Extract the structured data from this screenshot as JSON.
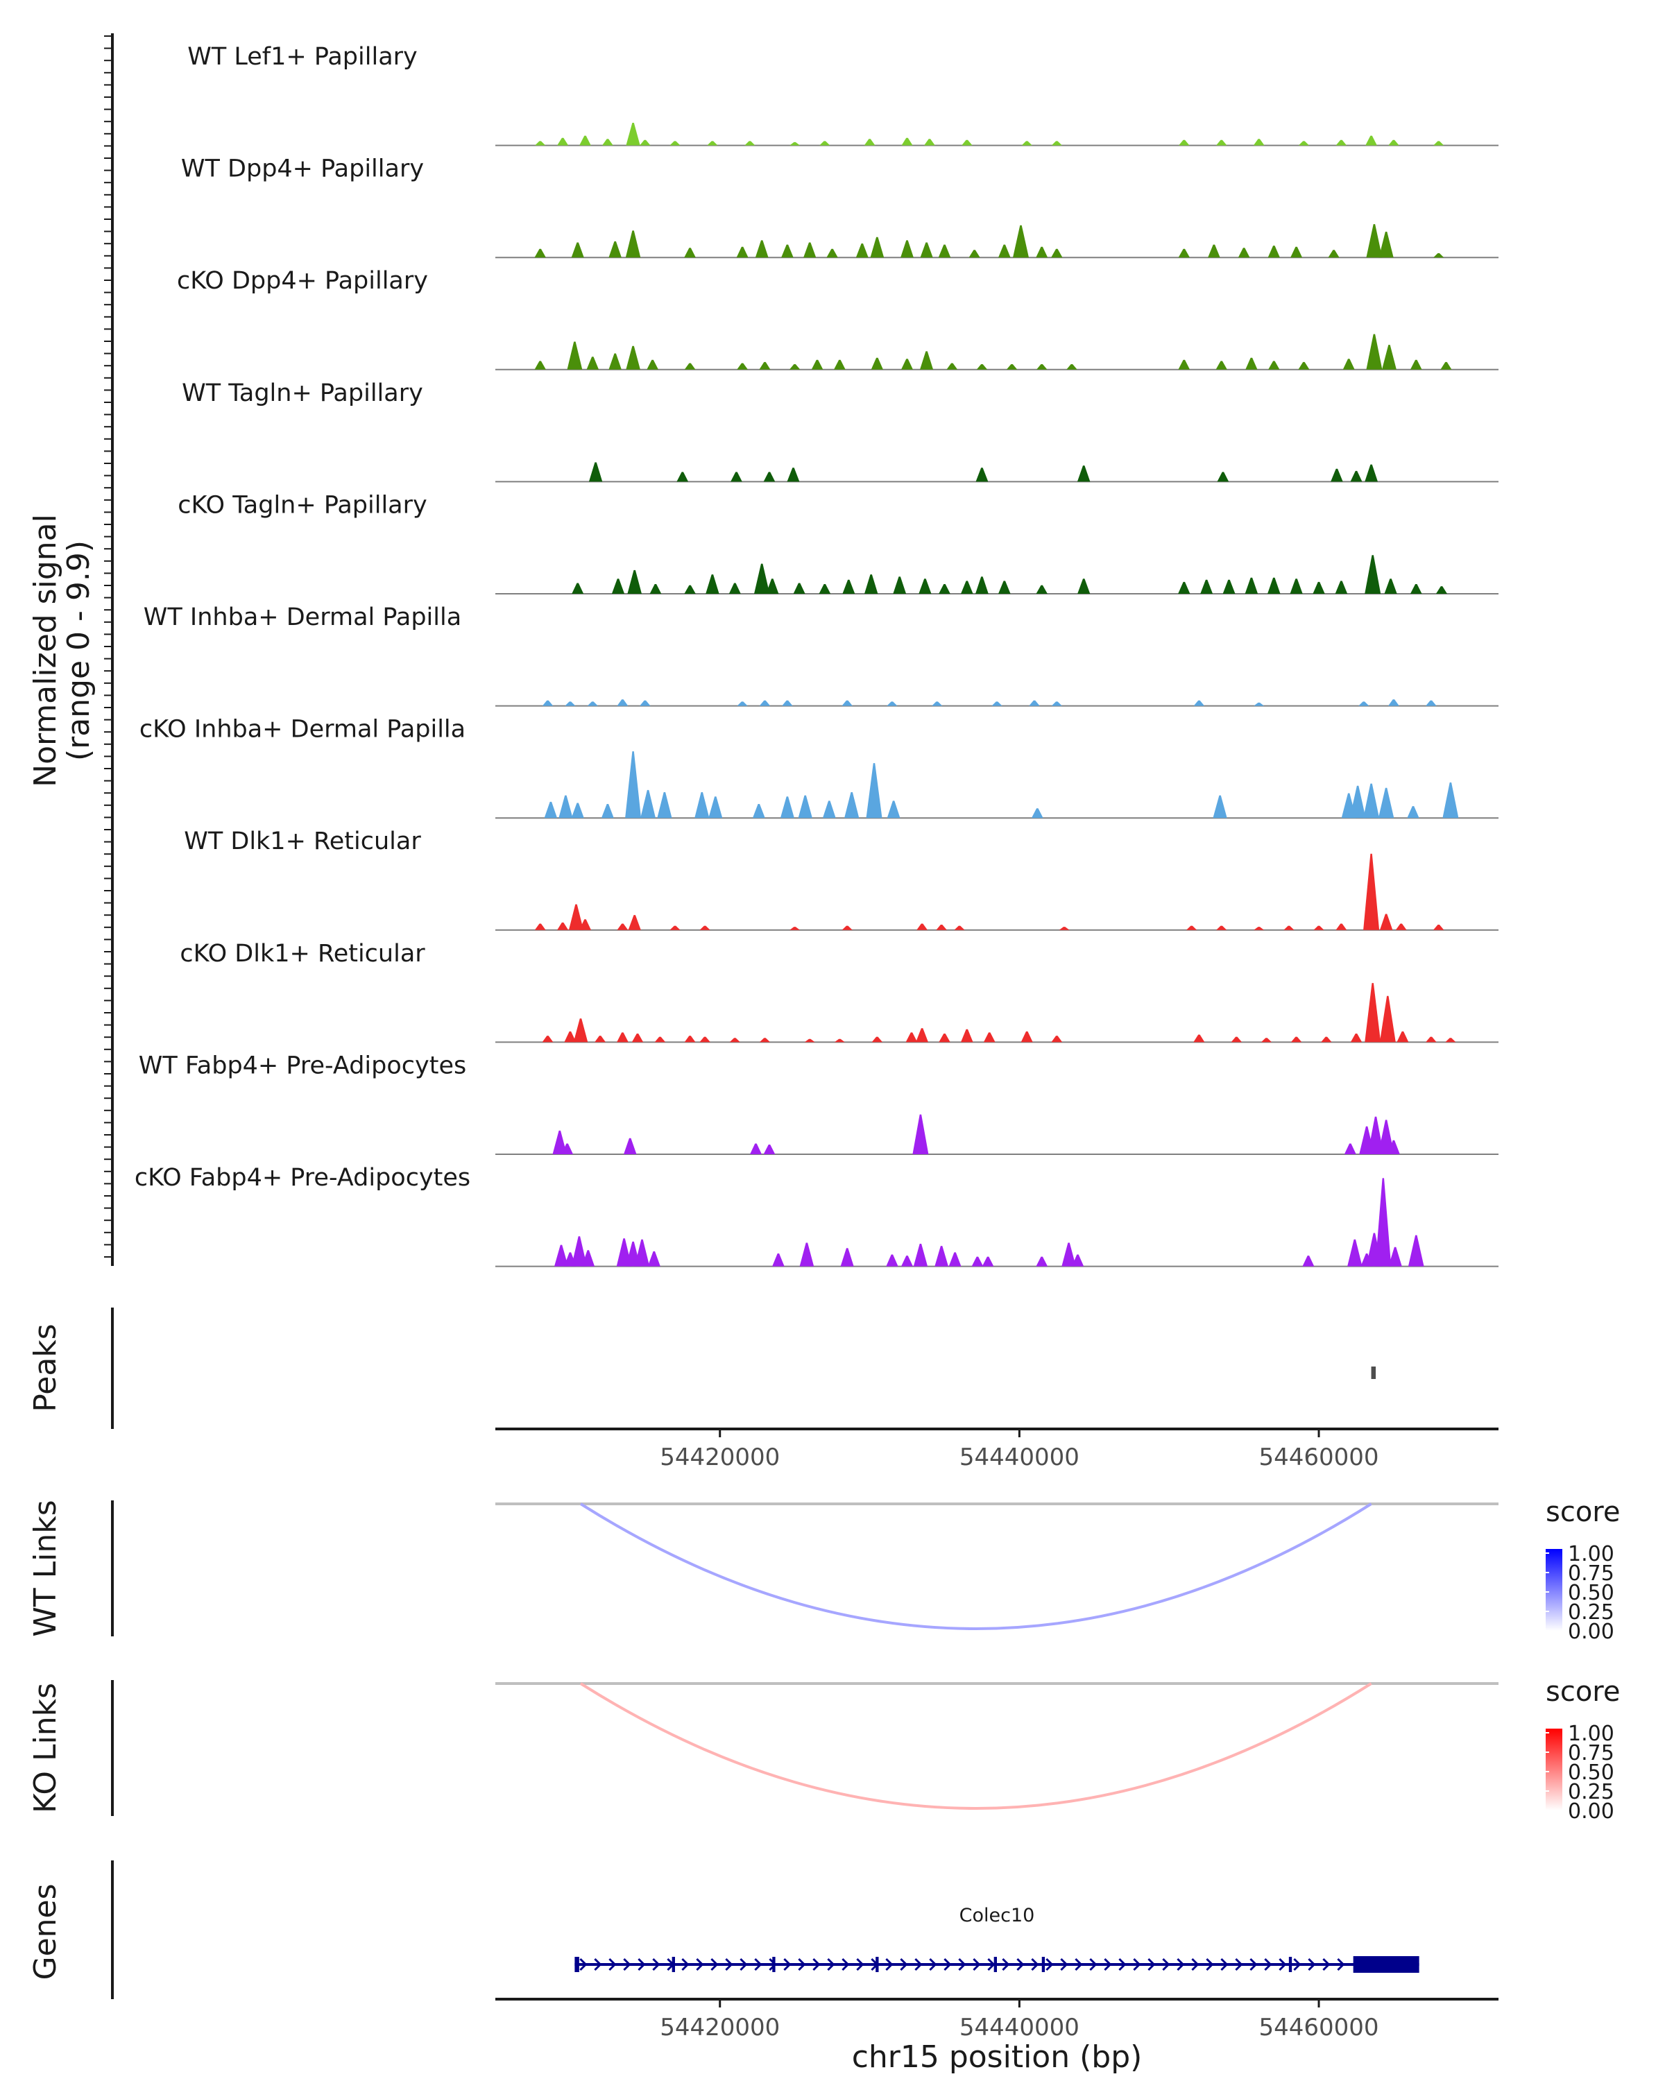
{
  "chart_data": {
    "type": "coverage",
    "region": {
      "start": 54405000,
      "end": 54472000
    },
    "xticks": [
      "54420000",
      "54440000",
      "54460000"
    ],
    "xtick_values": [
      54420000,
      54440000,
      54460000
    ],
    "xlabel": "chr15 position (bp)",
    "ylabel_line1": "Normalized signal",
    "ylabel_line2": "(range 0 - 9.9)",
    "signal_max": 9.9,
    "tracks": [
      {
        "name": "WT Lef1+ Papillary",
        "color": "#7CCD2E",
        "peaks": [
          [
            54408000,
            0.4
          ],
          [
            54409500,
            0.7
          ],
          [
            54411000,
            0.9
          ],
          [
            54412500,
            0.6
          ],
          [
            54414200,
            2.1
          ],
          [
            54415000,
            0.5
          ],
          [
            54417000,
            0.4
          ],
          [
            54419500,
            0.4
          ],
          [
            54422000,
            0.4
          ],
          [
            54425000,
            0.3
          ],
          [
            54427000,
            0.4
          ],
          [
            54430000,
            0.6
          ],
          [
            54432500,
            0.7
          ],
          [
            54434000,
            0.6
          ],
          [
            54436500,
            0.5
          ],
          [
            54440500,
            0.4
          ],
          [
            54442500,
            0.4
          ],
          [
            54451000,
            0.5
          ],
          [
            54453500,
            0.5
          ],
          [
            54456000,
            0.6
          ],
          [
            54459000,
            0.4
          ],
          [
            54461500,
            0.5
          ],
          [
            54463500,
            0.9
          ],
          [
            54465000,
            0.5
          ],
          [
            54468000,
            0.4
          ]
        ]
      },
      {
        "name": "WT Dpp4+ Papillary",
        "color": "#4A8F0A",
        "peaks": [
          [
            54408000,
            0.8
          ],
          [
            54410500,
            1.4
          ],
          [
            54413000,
            1.5
          ],
          [
            54414200,
            2.5
          ],
          [
            54418000,
            0.9
          ],
          [
            54421500,
            1.0
          ],
          [
            54422800,
            1.6
          ],
          [
            54424500,
            1.2
          ],
          [
            54426000,
            1.4
          ],
          [
            54427500,
            0.8
          ],
          [
            54429500,
            1.3
          ],
          [
            54430500,
            1.9
          ],
          [
            54432500,
            1.6
          ],
          [
            54433800,
            1.4
          ],
          [
            54435000,
            1.2
          ],
          [
            54437000,
            0.7
          ],
          [
            54439000,
            1.2
          ],
          [
            54440100,
            3.0
          ],
          [
            54441500,
            1.0
          ],
          [
            54442500,
            0.8
          ],
          [
            54451000,
            0.8
          ],
          [
            54453000,
            1.2
          ],
          [
            54455000,
            0.9
          ],
          [
            54457000,
            1.1
          ],
          [
            54458500,
            1.0
          ],
          [
            54461000,
            0.7
          ],
          [
            54463700,
            3.1
          ],
          [
            54464500,
            2.4
          ],
          [
            54468000,
            0.4
          ]
        ]
      },
      {
        "name": "cKO Dpp4+ Papillary",
        "color": "#4A8F0A",
        "peaks": [
          [
            54408000,
            0.8
          ],
          [
            54410300,
            2.6
          ],
          [
            54411500,
            1.2
          ],
          [
            54413000,
            1.5
          ],
          [
            54414200,
            2.2
          ],
          [
            54415500,
            0.9
          ],
          [
            54418000,
            0.6
          ],
          [
            54421500,
            0.6
          ],
          [
            54423000,
            0.7
          ],
          [
            54425000,
            0.5
          ],
          [
            54426500,
            0.9
          ],
          [
            54428000,
            0.9
          ],
          [
            54430500,
            1.1
          ],
          [
            54432500,
            1.0
          ],
          [
            54433800,
            1.7
          ],
          [
            54435500,
            0.6
          ],
          [
            54437500,
            0.5
          ],
          [
            54439500,
            0.5
          ],
          [
            54441500,
            0.5
          ],
          [
            54443500,
            0.5
          ],
          [
            54451000,
            0.9
          ],
          [
            54453500,
            0.8
          ],
          [
            54455500,
            1.1
          ],
          [
            54457000,
            0.8
          ],
          [
            54459000,
            0.7
          ],
          [
            54462000,
            1.0
          ],
          [
            54463700,
            3.3
          ],
          [
            54464700,
            2.3
          ],
          [
            54466500,
            0.9
          ],
          [
            54468500,
            0.7
          ]
        ]
      },
      {
        "name": "WT Tagln+ Papillary",
        "color": "#0F5C0A",
        "peaks": [
          [
            54411700,
            1.8
          ],
          [
            54417500,
            0.9
          ],
          [
            54421100,
            0.9
          ],
          [
            54423300,
            0.9
          ],
          [
            54424900,
            1.3
          ],
          [
            54437500,
            1.3
          ],
          [
            54444300,
            1.5
          ],
          [
            54453600,
            0.9
          ],
          [
            54461200,
            1.2
          ],
          [
            54462500,
            1.0
          ],
          [
            54463500,
            1.6
          ]
        ]
      },
      {
        "name": "cKO Tagln+ Papillary",
        "color": "#0F5C0A",
        "peaks": [
          [
            54410500,
            1.0
          ],
          [
            54413200,
            1.4
          ],
          [
            54414300,
            2.2
          ],
          [
            54415700,
            0.9
          ],
          [
            54418000,
            0.8
          ],
          [
            54419500,
            1.8
          ],
          [
            54421000,
            1.0
          ],
          [
            54422800,
            2.8
          ],
          [
            54423500,
            1.4
          ],
          [
            54425300,
            1.0
          ],
          [
            54427000,
            0.9
          ],
          [
            54428600,
            1.3
          ],
          [
            54430100,
            1.8
          ],
          [
            54432000,
            1.6
          ],
          [
            54433700,
            1.4
          ],
          [
            54435000,
            0.9
          ],
          [
            54436500,
            1.2
          ],
          [
            54437500,
            1.6
          ],
          [
            54439000,
            1.2
          ],
          [
            54441500,
            0.8
          ],
          [
            54444300,
            1.4
          ],
          [
            54451000,
            1.1
          ],
          [
            54452500,
            1.3
          ],
          [
            54454000,
            1.3
          ],
          [
            54455500,
            1.5
          ],
          [
            54457000,
            1.5
          ],
          [
            54458500,
            1.4
          ],
          [
            54460000,
            1.1
          ],
          [
            54461500,
            1.2
          ],
          [
            54463600,
            3.6
          ],
          [
            54464800,
            1.4
          ],
          [
            54466500,
            0.9
          ],
          [
            54468200,
            0.7
          ]
        ]
      },
      {
        "name": "WT Inhba+ Dermal Papilla",
        "color": "#5AA6E0",
        "peaks": [
          [
            54408500,
            0.5
          ],
          [
            54410000,
            0.4
          ],
          [
            54411500,
            0.4
          ],
          [
            54413500,
            0.6
          ],
          [
            54415000,
            0.5
          ],
          [
            54421500,
            0.4
          ],
          [
            54423000,
            0.5
          ],
          [
            54424500,
            0.5
          ],
          [
            54428500,
            0.5
          ],
          [
            54431500,
            0.4
          ],
          [
            54434500,
            0.4
          ],
          [
            54438500,
            0.4
          ],
          [
            54441000,
            0.5
          ],
          [
            54442500,
            0.4
          ],
          [
            54452000,
            0.5
          ],
          [
            54456000,
            0.3
          ],
          [
            54463000,
            0.4
          ],
          [
            54465000,
            0.6
          ],
          [
            54467500,
            0.5
          ]
        ]
      },
      {
        "name": "cKO Inhba+ Dermal Papilla",
        "color": "#5AA6E0",
        "peaks": [
          [
            54408700,
            1.5
          ],
          [
            54409700,
            2.1
          ],
          [
            54410500,
            1.4
          ],
          [
            54412500,
            1.3
          ],
          [
            54414200,
            6.2
          ],
          [
            54415200,
            2.6
          ],
          [
            54416300,
            2.4
          ],
          [
            54418800,
            2.4
          ],
          [
            54419700,
            2.0
          ],
          [
            54422600,
            1.3
          ],
          [
            54424500,
            2.0
          ],
          [
            54425700,
            2.1
          ],
          [
            54427300,
            1.6
          ],
          [
            54428800,
            2.4
          ],
          [
            54430300,
            5.1
          ],
          [
            54431600,
            1.6
          ],
          [
            54441200,
            0.9
          ],
          [
            54453400,
            2.1
          ],
          [
            54462000,
            2.3
          ],
          [
            54462600,
            3.0
          ],
          [
            54463500,
            3.2
          ],
          [
            54464500,
            2.8
          ],
          [
            54466300,
            1.1
          ],
          [
            54468800,
            3.3
          ]
        ]
      },
      {
        "name": "WT Dlk1+ Reticular",
        "color": "#EE2C2C",
        "peaks": [
          [
            54408000,
            0.6
          ],
          [
            54409500,
            0.7
          ],
          [
            54410400,
            2.4
          ],
          [
            54411000,
            1.0
          ],
          [
            54413500,
            0.6
          ],
          [
            54414300,
            1.4
          ],
          [
            54417000,
            0.4
          ],
          [
            54419000,
            0.4
          ],
          [
            54425000,
            0.3
          ],
          [
            54428500,
            0.4
          ],
          [
            54433500,
            0.6
          ],
          [
            54434800,
            0.5
          ],
          [
            54436000,
            0.4
          ],
          [
            54443000,
            0.3
          ],
          [
            54451500,
            0.4
          ],
          [
            54453500,
            0.4
          ],
          [
            54456000,
            0.3
          ],
          [
            54458000,
            0.4
          ],
          [
            54460000,
            0.4
          ],
          [
            54461500,
            0.6
          ],
          [
            54463500,
            7.1
          ],
          [
            54464500,
            1.5
          ],
          [
            54465500,
            0.6
          ],
          [
            54468000,
            0.5
          ]
        ]
      },
      {
        "name": "cKO Dlk1+ Reticular",
        "color": "#EE2C2C",
        "peaks": [
          [
            54408500,
            0.6
          ],
          [
            54410000,
            1.0
          ],
          [
            54410700,
            2.2
          ],
          [
            54412000,
            0.6
          ],
          [
            54413500,
            0.9
          ],
          [
            54414500,
            0.8
          ],
          [
            54416000,
            0.5
          ],
          [
            54418000,
            0.6
          ],
          [
            54419000,
            0.5
          ],
          [
            54421000,
            0.4
          ],
          [
            54423000,
            0.4
          ],
          [
            54426000,
            0.3
          ],
          [
            54428000,
            0.3
          ],
          [
            54430500,
            0.5
          ],
          [
            54432800,
            0.9
          ],
          [
            54433500,
            1.3
          ],
          [
            54435000,
            0.8
          ],
          [
            54436500,
            1.2
          ],
          [
            54438000,
            0.9
          ],
          [
            54440500,
            1.0
          ],
          [
            54442500,
            0.6
          ],
          [
            54452000,
            0.7
          ],
          [
            54454500,
            0.5
          ],
          [
            54456500,
            0.4
          ],
          [
            54458500,
            0.5
          ],
          [
            54460500,
            0.5
          ],
          [
            54462500,
            0.8
          ],
          [
            54463600,
            5.5
          ],
          [
            54464600,
            4.3
          ],
          [
            54465600,
            1.0
          ],
          [
            54467500,
            0.5
          ],
          [
            54468800,
            0.4
          ]
        ]
      },
      {
        "name": "WT Fabp4+ Pre-Adipocytes",
        "color": "#A020F0",
        "peaks": [
          [
            54409300,
            2.2
          ],
          [
            54409800,
            1.0
          ],
          [
            54414000,
            1.5
          ],
          [
            54422400,
            1.0
          ],
          [
            54423300,
            0.9
          ],
          [
            54433400,
            3.7
          ],
          [
            54462100,
            1.0
          ],
          [
            54463200,
            2.6
          ],
          [
            54463800,
            3.5
          ],
          [
            54464500,
            3.2
          ],
          [
            54465000,
            1.3
          ]
        ]
      },
      {
        "name": "cKO Fabp4+ Pre-Adipocytes",
        "color": "#A020F0",
        "peaks": [
          [
            54409400,
            2.0
          ],
          [
            54410000,
            1.3
          ],
          [
            54410600,
            2.8
          ],
          [
            54411200,
            1.5
          ],
          [
            54413600,
            2.6
          ],
          [
            54414200,
            2.3
          ],
          [
            54414800,
            2.5
          ],
          [
            54415600,
            1.4
          ],
          [
            54423900,
            1.2
          ],
          [
            54425800,
            2.2
          ],
          [
            54428500,
            1.7
          ],
          [
            54431500,
            1.1
          ],
          [
            54432500,
            1.0
          ],
          [
            54433400,
            2.1
          ],
          [
            54434800,
            1.9
          ],
          [
            54435700,
            1.3
          ],
          [
            54437200,
            0.9
          ],
          [
            54437900,
            0.9
          ],
          [
            54441500,
            0.9
          ],
          [
            54443300,
            2.2
          ],
          [
            54443900,
            1.1
          ],
          [
            54459300,
            1.0
          ],
          [
            54462400,
            2.5
          ],
          [
            54463200,
            1.2
          ],
          [
            54463700,
            3.1
          ],
          [
            54464300,
            8.2
          ],
          [
            54465100,
            1.8
          ],
          [
            54466500,
            2.9
          ]
        ]
      }
    ],
    "peaks_track": {
      "label": "Peaks",
      "intervals": [
        [
          54463500,
          54463800
        ]
      ]
    },
    "link_panels": [
      {
        "label": "WT Links",
        "arc_start": 54410700,
        "arc_end": 54463500,
        "score": 0.35,
        "low_color": "#FFFFFF",
        "high_color": "#0000FF"
      },
      {
        "label": "KO Links",
        "arc_start": 54410700,
        "arc_end": 54463500,
        "score": 0.3,
        "low_color": "#FFFFFF",
        "high_color": "#FF0000"
      }
    ],
    "legend": {
      "title": "score",
      "ticks": [
        "1.00",
        "0.75",
        "0.50",
        "0.25",
        "0.00"
      ]
    },
    "genes_track": {
      "label": "Genes",
      "gene": "Colec10",
      "strand": "+",
      "start": 54410300,
      "end": 54466700,
      "color": "#00008B",
      "exons": [
        [
          54410300,
          54410600
        ],
        [
          54416800,
          54417000
        ],
        [
          54423500,
          54423700
        ],
        [
          54430400,
          54430600
        ],
        [
          54438300,
          54438500
        ],
        [
          54441500,
          54441700
        ],
        [
          54458000,
          54458200
        ],
        [
          54462300,
          54466700
        ]
      ]
    }
  }
}
